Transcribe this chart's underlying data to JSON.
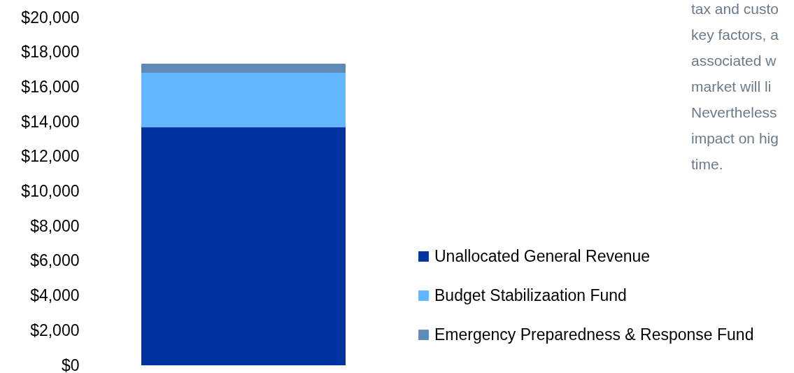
{
  "chart_data": {
    "type": "bar",
    "stacked": true,
    "categories": [
      null
    ],
    "series": [
      {
        "name": "Unallocated General Revenue",
        "color": "#0033a0",
        "values": [
          13700
        ]
      },
      {
        "name": "Budget Stabilizaation Fund",
        "color": "#62b5ff",
        "values": [
          3120
        ]
      },
      {
        "name": "Emergency Preparedness & Response Fund",
        "color": "#5f8ab5",
        "values": [
          520
        ]
      }
    ],
    "ylim": [
      0,
      20000
    ],
    "yticks": [
      {
        "value": 0,
        "label": "$0"
      },
      {
        "value": 2000,
        "label": "$2,000"
      },
      {
        "value": 4000,
        "label": "$4,000"
      },
      {
        "value": 6000,
        "label": "$6,000"
      },
      {
        "value": 8000,
        "label": "$8,000"
      },
      {
        "value": 10000,
        "label": "$10,000"
      },
      {
        "value": 12000,
        "label": "$12,000"
      },
      {
        "value": 14000,
        "label": "$14,000"
      },
      {
        "value": 16000,
        "label": "$16,000"
      },
      {
        "value": 18000,
        "label": "$18,000"
      },
      {
        "value": 20000,
        "label": "$20,000"
      }
    ],
    "tick_labels": "y",
    "grid": false,
    "legend": "bottom right",
    "annotations": [
      "tax and custo",
      "key factors, a",
      "associated w",
      "market will li",
      "Nevertheless",
      "impact on hig",
      "time."
    ]
  }
}
